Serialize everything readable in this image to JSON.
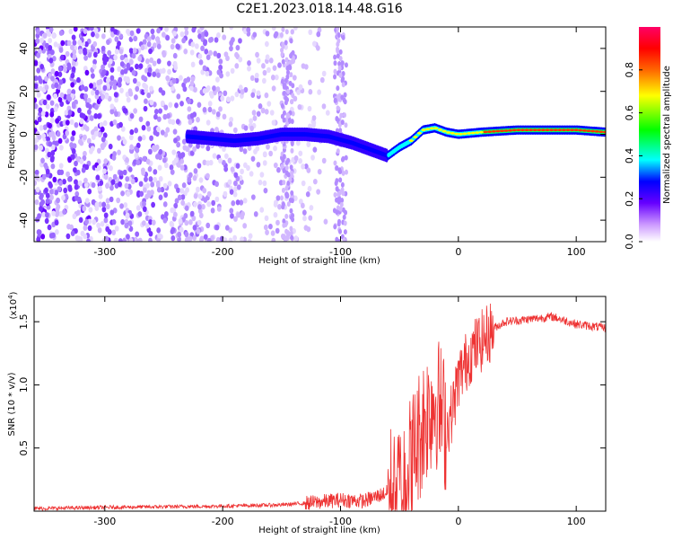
{
  "title": "C2E1.2023.018.14.48.G16",
  "chart_data": [
    {
      "type": "heatmap",
      "xlabel": "Height of straight line (km)",
      "ylabel": "Frequency (Hz)",
      "xlim": [
        -360,
        125
      ],
      "ylim": [
        -50,
        50
      ],
      "x_ticks": [
        -300,
        -200,
        -100,
        0,
        100
      ],
      "y_ticks": [
        -40,
        -20,
        0,
        20,
        40
      ],
      "colorbar": {
        "label": "Normalized spectral amplitude",
        "range": [
          0,
          1
        ],
        "ticks": [
          "0.0",
          "0.2",
          "0.4",
          "0.6",
          "0.8"
        ],
        "colors": [
          "#ffffff",
          "#cc99ff",
          "#6600ff",
          "#0000ff",
          "#00ffff",
          "#00ff00",
          "#ffff00",
          "#ff6600",
          "#ff0000",
          "#ff0066"
        ]
      },
      "ridge": {
        "x": [
          -230,
          -210,
          -190,
          -170,
          -150,
          -130,
          -110,
          -90,
          -80,
          -70,
          -60,
          -50,
          -40,
          -30,
          -20,
          -10,
          0,
          20,
          50,
          80,
          100,
          125
        ],
        "y": [
          -1,
          -2,
          -3,
          -2,
          0,
          0,
          -1,
          -4,
          -6,
          -8,
          -10,
          -6,
          -3,
          2,
          3,
          1,
          0,
          1,
          2,
          2,
          2,
          1
        ]
      }
    },
    {
      "type": "line",
      "xlabel": "Height of straight line (km)",
      "ylabel": "SNR (10 * v/v)",
      "scale_note": "(x10",
      "scale_exp": "4",
      "scale_close": ")",
      "xlim": [
        -360,
        125
      ],
      "ylim": [
        0,
        17000
      ],
      "x_ticks": [
        -300,
        -200,
        -100,
        0,
        100
      ],
      "y_ticks": [
        "0.5",
        "1.0",
        "1.5"
      ],
      "y_tick_values": [
        5000,
        10000,
        15000
      ],
      "series_color": "#ee3333",
      "series_points": {
        "x": [
          -360,
          -300,
          -200,
          -150,
          -120,
          -100,
          -80,
          -60,
          -50,
          -40,
          -30,
          -20,
          -15,
          -10,
          -5,
          0,
          10,
          20,
          30,
          40,
          60,
          80,
          100,
          125
        ],
        "y": [
          200,
          300,
          400,
          500,
          700,
          900,
          800,
          1500,
          2000,
          4000,
          7000,
          9000,
          8000,
          6500,
          8000,
          10500,
          12500,
          13500,
          14500,
          15000,
          15200,
          15400,
          14800,
          14500
        ]
      }
    }
  ]
}
